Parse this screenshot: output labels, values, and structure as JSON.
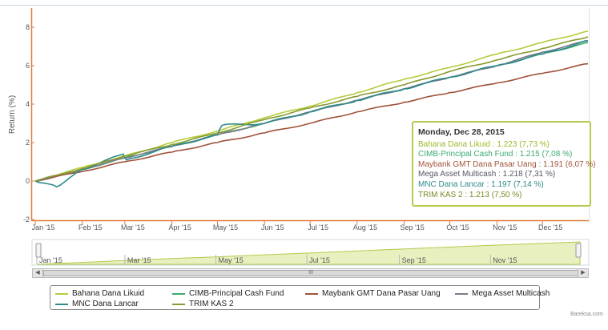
{
  "chart_data": {
    "type": "line",
    "ylabel": "Return (%)",
    "ylim": [
      -2,
      9
    ],
    "y_ticks": [
      "-2",
      "0",
      "2",
      "4",
      "6",
      "8"
    ],
    "x_range": [
      "2015-01-01",
      "2015-12-31"
    ],
    "x_ticks": [
      "Jan '15",
      "Feb '15",
      "Mar '15",
      "Apr '15",
      "May '15",
      "Jun '15",
      "Jul '15",
      "Aug '15",
      "Sep '15",
      "Oct '15",
      "Nov '15",
      "Dec '15"
    ],
    "x_tick_dates": [
      "2015-01-01",
      "2015-02-01",
      "2015-03-01",
      "2015-04-01",
      "2015-05-01",
      "2015-06-01",
      "2015-07-01",
      "2015-08-01",
      "2015-09-01",
      "2015-10-01",
      "2015-11-01",
      "2015-12-01"
    ],
    "series": [
      {
        "name": "Bahana Dana Likuid",
        "color": "#b5cc3a",
        "x": [
          "2015-01-01",
          "2015-02-01",
          "2015-03-01",
          "2015-04-01",
          "2015-05-01",
          "2015-06-01",
          "2015-07-01",
          "2015-08-01",
          "2015-09-01",
          "2015-10-01",
          "2015-11-01",
          "2015-12-01",
          "2015-12-31"
        ],
        "y": [
          0.0,
          0.7,
          1.3,
          2.0,
          2.6,
          3.3,
          3.9,
          4.6,
          5.3,
          5.9,
          6.6,
          7.2,
          7.8
        ]
      },
      {
        "name": "CIMB-Principal Cash Fund",
        "color": "#3aaa6e",
        "x": [
          "2015-01-01",
          "2015-02-01",
          "2015-03-01",
          "2015-04-01",
          "2015-05-01",
          "2015-06-01",
          "2015-07-01",
          "2015-08-01",
          "2015-09-01",
          "2015-10-01",
          "2015-11-01",
          "2015-12-01",
          "2015-12-31"
        ],
        "y": [
          0.0,
          0.6,
          1.2,
          1.8,
          2.4,
          3.0,
          3.6,
          4.2,
          4.8,
          5.4,
          6.0,
          6.6,
          7.2
        ]
      },
      {
        "name": "Maybank GMT Dana Pasar Uang",
        "color": "#a0523a",
        "x": [
          "2015-01-01",
          "2015-02-01",
          "2015-03-01",
          "2015-04-01",
          "2015-05-01",
          "2015-06-01",
          "2015-07-01",
          "2015-08-01",
          "2015-09-01",
          "2015-10-01",
          "2015-11-01",
          "2015-12-01",
          "2015-12-31"
        ],
        "y": [
          0.0,
          0.5,
          1.0,
          1.5,
          2.0,
          2.5,
          3.0,
          3.6,
          4.1,
          4.6,
          5.1,
          5.6,
          6.1
        ]
      },
      {
        "name": "Mega Asset Multicash",
        "color": "#7a7a8a",
        "x": [
          "2015-01-01",
          "2015-02-01",
          "2015-03-01",
          "2015-04-01",
          "2015-05-01",
          "2015-06-01",
          "2015-07-01",
          "2015-08-01",
          "2015-09-01",
          "2015-10-01",
          "2015-11-01",
          "2015-12-01",
          "2015-12-31"
        ],
        "y": [
          0.0,
          0.6,
          1.2,
          1.8,
          2.4,
          3.0,
          3.6,
          4.2,
          4.8,
          5.4,
          6.0,
          6.7,
          7.3
        ]
      },
      {
        "name": "MNC Dana Lancar",
        "color": "#2e8b8b",
        "x": [
          "2015-01-01",
          "2015-01-15",
          "2015-02-01",
          "2015-02-28",
          "2015-03-02",
          "2015-04-01",
          "2015-05-01",
          "2015-05-04",
          "2015-06-01",
          "2015-07-01",
          "2015-08-01",
          "2015-09-01",
          "2015-10-01",
          "2015-11-01",
          "2015-12-01",
          "2015-12-31"
        ],
        "y": [
          0.0,
          -0.3,
          0.6,
          1.4,
          1.1,
          1.8,
          2.4,
          2.9,
          3.0,
          3.6,
          4.2,
          4.8,
          5.4,
          6.0,
          6.6,
          7.3
        ]
      },
      {
        "name": "TRIM KAS 2",
        "color": "#8a9a30",
        "x": [
          "2015-01-01",
          "2015-02-01",
          "2015-03-01",
          "2015-04-01",
          "2015-05-01",
          "2015-06-01",
          "2015-07-01",
          "2015-08-01",
          "2015-09-01",
          "2015-10-01",
          "2015-11-01",
          "2015-12-01",
          "2015-12-31"
        ],
        "y": [
          0.0,
          0.65,
          1.3,
          1.9,
          2.5,
          3.2,
          3.8,
          4.4,
          5.0,
          5.7,
          6.3,
          6.9,
          7.5
        ]
      }
    ],
    "navigator": {
      "x_ticks": [
        "Jan '15",
        "Mar '15",
        "May '15",
        "Jul '15",
        "Sep '15",
        "Nov '15"
      ],
      "x_tick_dates": [
        "2015-01-01",
        "2015-03-01",
        "2015-05-01",
        "2015-07-01",
        "2015-09-01",
        "2015-11-01"
      ],
      "color": "#b3cb4f"
    },
    "grid": false,
    "legend_position": "bottom"
  },
  "tooltip": {
    "date": "Monday, Dec 28, 2015",
    "rows": [
      {
        "label": "Bahana Dana Likuid : 1.223 (7,73 %)",
        "color": "#9fb82a"
      },
      {
        "label": "CIMB-Principal Cash Fund : 1.215 (7,08 %)",
        "color": "#3aaa6e"
      },
      {
        "label": "Maybank GMT Dana Pasar Uang : 1.191 (6,07 %)",
        "color": "#a0523a"
      },
      {
        "label": "Mega Asset Multicash : 1.218 (7,31 %)",
        "color": "#555566"
      },
      {
        "label": "MNC Dana Lancar : 1.197 (7,14 %)",
        "color": "#2e8b8b"
      },
      {
        "label": "TRIM KAS 2 : 1.213 (7,50 %)",
        "color": "#7a8a20"
      }
    ]
  },
  "scrollbar": {
    "thumb_label": "III",
    "left_arrow": "◀",
    "right_arrow": "▶"
  },
  "credit": "Bareksa.com"
}
